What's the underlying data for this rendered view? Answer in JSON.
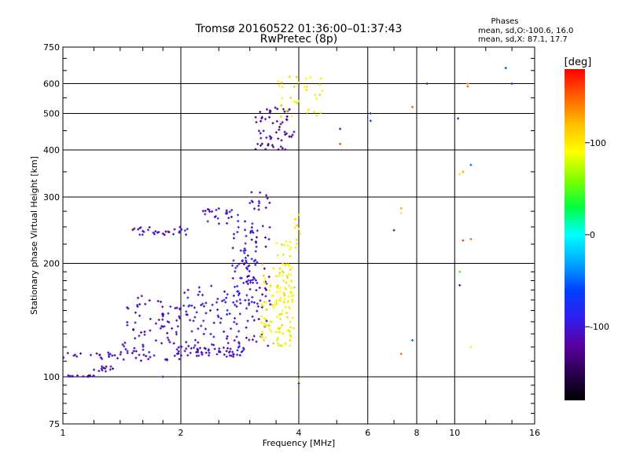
{
  "header": {
    "title": "Tromsø 20160522 01:36:00–01:37:43",
    "subtitle": "RwPretec (8p)",
    "phases_title": "Phases",
    "phases_line1": "mean, sd,O:-100.6, 16.0",
    "phases_line2": "mean, sd,X:  87.1, 17.7"
  },
  "colorbar": {
    "label": "[deg]",
    "ticks": [
      {
        "value": 100,
        "label": "100"
      },
      {
        "value": 0,
        "label": "0"
      },
      {
        "value": -100,
        "label": "-100"
      }
    ],
    "range": [
      -180,
      180
    ],
    "colormap": [
      "#000000",
      "#2a0050",
      "#5a00a0",
      "#3020f0",
      "#0040ff",
      "#00aaff",
      "#00ffff",
      "#00ff40",
      "#80ff00",
      "#ffff00",
      "#ffc000",
      "#ff6000",
      "#ff0000"
    ]
  },
  "chart_data": {
    "type": "scatter",
    "title": "Tromsø 20160522 01:36:00–01:37:43",
    "subtitle": "RwPretec (8p)",
    "xlabel": "Frequency [MHz]",
    "ylabel": "Stationary phase Virtual Height [km]",
    "x_scale": "log",
    "y_scale": "log",
    "xlim": [
      1,
      16
    ],
    "ylim": [
      75,
      750
    ],
    "x_ticks": [
      1,
      2,
      4,
      6,
      8,
      10,
      16
    ],
    "x_tick_labels": [
      "1",
      "2",
      "4",
      "6",
      "8",
      "10",
      "16"
    ],
    "y_ticks": [
      75,
      100,
      200,
      300,
      400,
      500,
      600,
      750
    ],
    "y_tick_labels": [
      "75",
      "100",
      "200",
      "300",
      "400",
      "500",
      "600",
      "750"
    ],
    "grid": true,
    "color_value": "phase [deg]",
    "series": [
      {
        "segments": [
          {
            "f": [
              1.0,
              1.2
            ],
            "h": [
              100,
              101
            ],
            "p": -110,
            "n": 14
          },
          {
            "f": [
              1.2,
              1.35
            ],
            "h": [
              103,
              108
            ],
            "p": -112,
            "n": 12
          },
          {
            "f": [
              1.0,
              1.4
            ],
            "h": [
              111,
              116
            ],
            "p": -108,
            "n": 20
          },
          {
            "f": [
              1.4,
              2.0
            ],
            "h": [
              110,
              165
            ],
            "p": -110,
            "n": 90
          },
          {
            "f": [
              1.95,
              2.9
            ],
            "h": [
              113,
              120
            ],
            "p": -105,
            "n": 60
          },
          {
            "f": [
              2.0,
              2.9
            ],
            "h": [
              120,
              175
            ],
            "p": -100,
            "n": 80
          },
          {
            "f": [
              2.7,
              3.15
            ],
            "h": [
              140,
              250
            ],
            "p": -95,
            "n": 70
          },
          {
            "f": [
              2.9,
              3.4
            ],
            "h": [
              120,
              320
            ],
            "p": -112,
            "n": 70
          },
          {
            "f": [
              1.5,
              2.1
            ],
            "h": [
              238,
              250
            ],
            "p": -110,
            "n": 30
          },
          {
            "f": [
              2.25,
              2.8
            ],
            "h": [
              255,
              280
            ],
            "p": -100,
            "n": 25
          },
          {
            "f": [
              3.1,
              3.9
            ],
            "h": [
              400,
              520
            ],
            "p": -120,
            "n": 60
          },
          {
            "f": [
              3.5,
              4.6
            ],
            "h": [
              490,
              630
            ],
            "p": 100,
            "n": 35
          }
        ]
      },
      {
        "segments": [
          {
            "f": [
              3.2,
              3.9
            ],
            "h": [
              120,
              200
            ],
            "p": 100,
            "n": 110
          },
          {
            "f": [
              3.5,
              3.9
            ],
            "h": [
              125,
              230
            ],
            "p": 85,
            "n": 40
          },
          {
            "f": [
              3.9,
              4.05
            ],
            "h": [
              220,
              270
            ],
            "p": 95,
            "n": 10
          }
        ]
      }
    ],
    "isolated_points": [
      {
        "f": 5.1,
        "h": 415,
        "p": 160
      },
      {
        "f": 5.1,
        "h": 455,
        "p": -110
      },
      {
        "f": 6.1,
        "h": 500,
        "p": -90
      },
      {
        "f": 6.1,
        "h": 478,
        "p": -60
      },
      {
        "f": 7.0,
        "h": 245,
        "p": -110
      },
      {
        "f": 7.3,
        "h": 280,
        "p": 130
      },
      {
        "f": 7.3,
        "h": 272,
        "p": 100
      },
      {
        "f": 7.8,
        "h": 520,
        "p": 150
      },
      {
        "f": 7.8,
        "h": 125,
        "p": -50
      },
      {
        "f": 7.3,
        "h": 115,
        "p": 150
      },
      {
        "f": 8.5,
        "h": 600,
        "p": -110
      },
      {
        "f": 10.2,
        "h": 485,
        "p": -100
      },
      {
        "f": 10.3,
        "h": 345,
        "p": 100
      },
      {
        "f": 10.5,
        "h": 350,
        "p": 130
      },
      {
        "f": 10.5,
        "h": 230,
        "p": 160
      },
      {
        "f": 10.8,
        "h": 600,
        "p": 130
      },
      {
        "f": 10.8,
        "h": 590,
        "p": 150
      },
      {
        "f": 11.0,
        "h": 365,
        "p": -50
      },
      {
        "f": 11.0,
        "h": 232,
        "p": 150
      },
      {
        "f": 10.3,
        "h": 190,
        "p": 40
      },
      {
        "f": 10.3,
        "h": 175,
        "p": -110
      },
      {
        "f": 11.0,
        "h": 120,
        "p": 100
      },
      {
        "f": 13.5,
        "h": 660,
        "p": -60
      },
      {
        "f": 14.0,
        "h": 600,
        "p": -100
      },
      {
        "f": 4.0,
        "h": 98,
        "p": 120
      },
      {
        "f": 4.0,
        "h": 96,
        "p": -120
      },
      {
        "f": 1.8,
        "h": 100,
        "p": -110
      }
    ]
  }
}
